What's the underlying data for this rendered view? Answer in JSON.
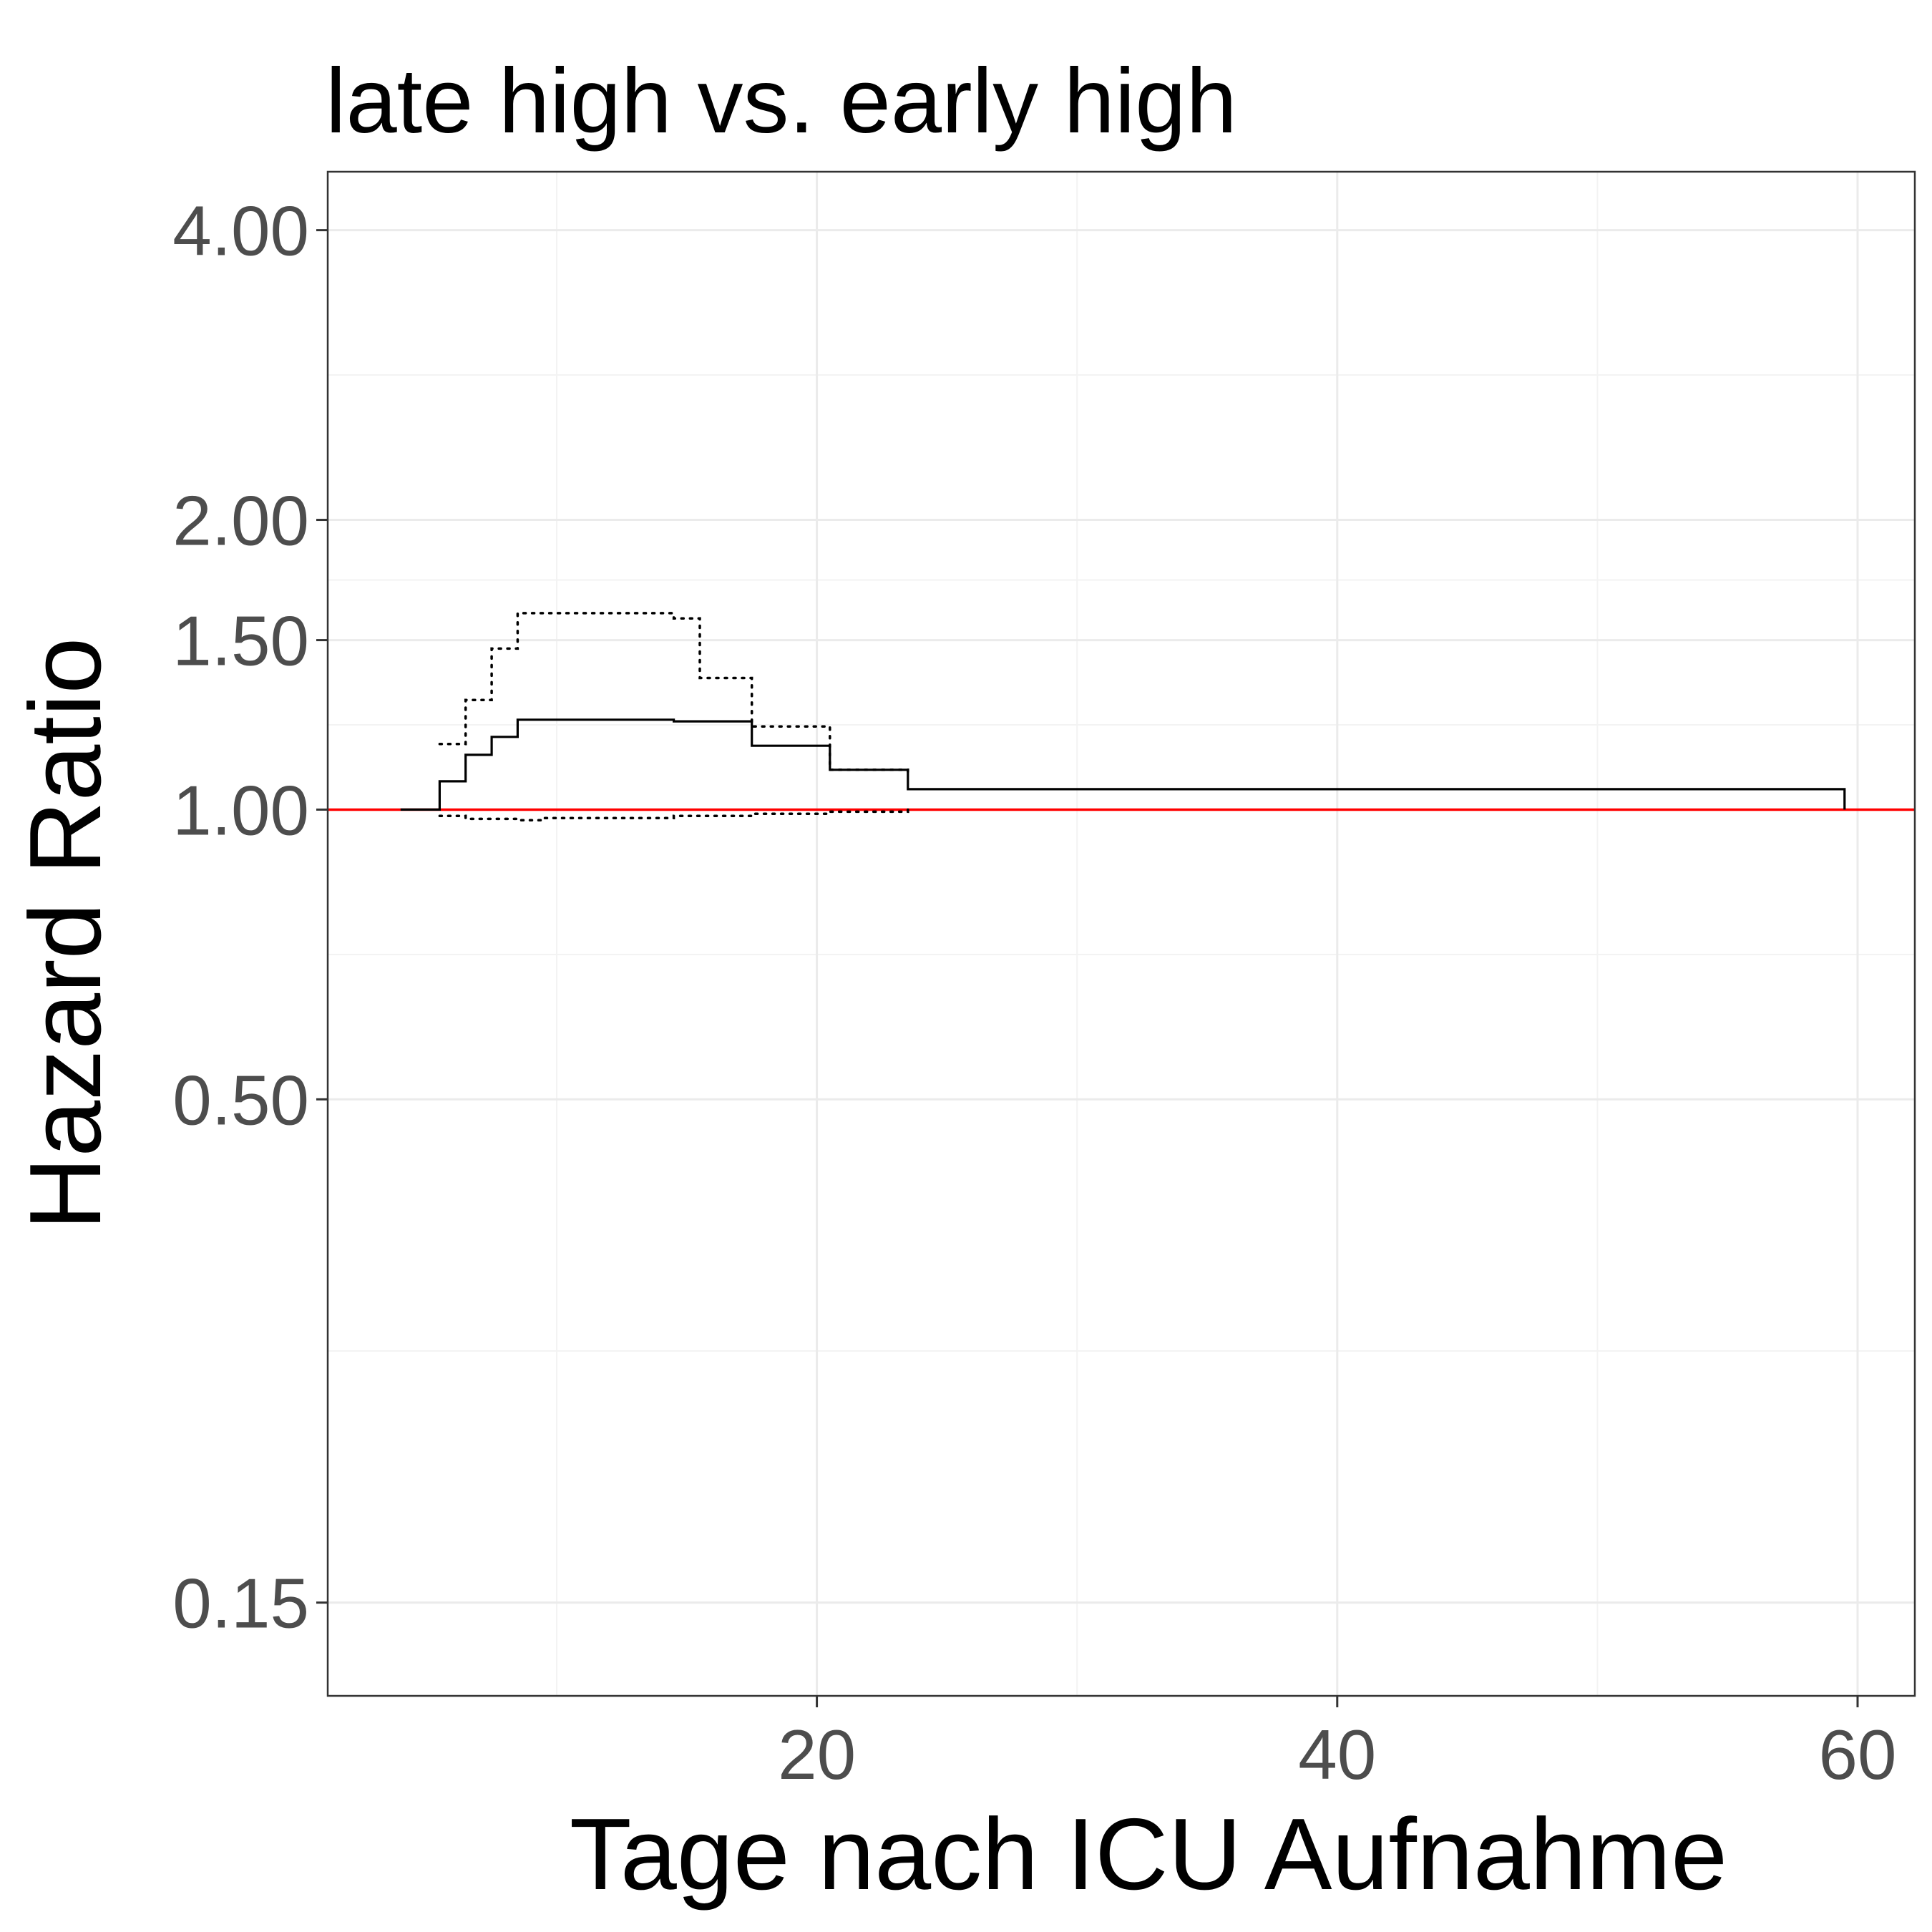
{
  "chart_data": {
    "type": "line",
    "title": "late high vs. early high",
    "xlabel": "Tage nach ICU Aufnahme",
    "ylabel": "Hazard Ratio",
    "xlim": [
      1.2,
      62.2
    ],
    "ylim": [
      0.12,
      4.6
    ],
    "y_scale": "log",
    "x_ticks": [
      20,
      40,
      60
    ],
    "x_tick_labels": [
      "20",
      "40",
      "60"
    ],
    "y_ticks": [
      0.15,
      0.5,
      1.0,
      1.5,
      2.0,
      4.0
    ],
    "y_tick_labels": [
      "0.15",
      "0.50",
      "1.00",
      "1.50",
      "2.00",
      "4.00"
    ],
    "grid": true,
    "reference_line": {
      "y": 1.0,
      "color": "#ff0000"
    },
    "series": [
      {
        "style": "solid",
        "color": "#000000",
        "step": true,
        "points": [
          [
            4.0,
            1.0
          ],
          [
            5.5,
            1.07
          ],
          [
            6.5,
            1.14
          ],
          [
            7.5,
            1.19
          ],
          [
            8.5,
            1.24
          ],
          [
            14.5,
            1.235
          ],
          [
            17.5,
            1.165
          ],
          [
            20.5,
            1.1
          ],
          [
            23.5,
            1.05
          ],
          [
            59.5,
            1.0
          ]
        ]
      },
      {
        "style": "dotted",
        "color": "#000000",
        "step": true,
        "points": [
          [
            5.5,
            1.17
          ],
          [
            6.5,
            1.3
          ],
          [
            7.5,
            1.47
          ],
          [
            8.5,
            1.6
          ],
          [
            14.5,
            1.58
          ],
          [
            15.5,
            1.37
          ],
          [
            17.5,
            1.22
          ],
          [
            20.5,
            1.1
          ],
          [
            23.5,
            1.095
          ]
        ]
      },
      {
        "style": "dotted",
        "color": "#000000",
        "step": true,
        "points": [
          [
            5.5,
            0.985
          ],
          [
            6.5,
            0.978
          ],
          [
            8.5,
            0.975
          ],
          [
            9.5,
            0.98
          ],
          [
            14.5,
            0.985
          ],
          [
            17.5,
            0.99
          ],
          [
            20.5,
            0.995
          ],
          [
            23.5,
            1.0
          ]
        ]
      }
    ]
  }
}
